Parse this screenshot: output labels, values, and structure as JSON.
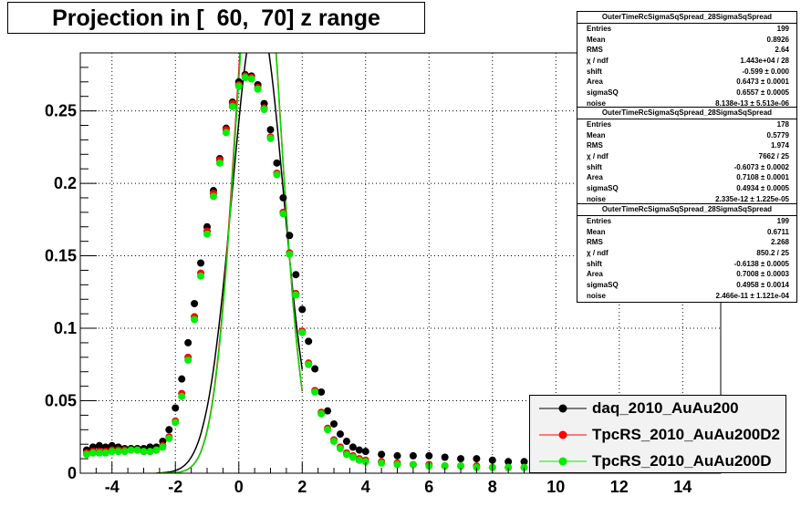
{
  "title": "Projection in [  60,  70] z range",
  "chart_data": {
    "type": "scatter",
    "xlim": [
      -5,
      15.2
    ],
    "ylim": [
      0,
      0.29
    ],
    "xticks": [
      -4,
      -2,
      0,
      2,
      4,
      6,
      8,
      10,
      12,
      14
    ],
    "yticks": [
      0,
      0.05,
      0.1,
      0.15,
      0.2,
      0.25
    ],
    "ytick_labels": [
      "0",
      "0.05",
      "0.1",
      "0.15",
      "0.2",
      "0.25"
    ],
    "grid": true,
    "legend_position": "bottom-right",
    "series": [
      {
        "name": "daq_2010_AuAu200",
        "color": "#000000",
        "marker": "circle",
        "x": [
          -4.8,
          -4.6,
          -4.4,
          -4.2,
          -4.0,
          -3.8,
          -3.6,
          -3.4,
          -3.2,
          -3.0,
          -2.8,
          -2.6,
          -2.4,
          -2.2,
          -2.0,
          -1.8,
          -1.6,
          -1.4,
          -1.2,
          -1.0,
          -0.8,
          -0.6,
          -0.4,
          -0.2,
          0.0,
          0.2,
          0.4,
          0.6,
          0.8,
          1.0,
          1.2,
          1.4,
          1.6,
          1.8,
          2.0,
          2.2,
          2.4,
          2.6,
          2.8,
          3.0,
          3.2,
          3.4,
          3.6,
          3.8,
          4.0,
          4.5,
          5.0,
          5.5,
          6.0,
          6.5,
          7.0,
          7.5,
          8.0,
          8.5,
          9.0
        ],
        "y": [
          0.016,
          0.018,
          0.019,
          0.018,
          0.019,
          0.018,
          0.017,
          0.017,
          0.017,
          0.017,
          0.018,
          0.018,
          0.022,
          0.03,
          0.045,
          0.065,
          0.09,
          0.117,
          0.145,
          0.17,
          0.195,
          0.217,
          0.238,
          0.256,
          0.27,
          0.275,
          0.274,
          0.268,
          0.255,
          0.237,
          0.214,
          0.19,
          0.164,
          0.137,
          0.113,
          0.091,
          0.072,
          0.056,
          0.043,
          0.034,
          0.027,
          0.022,
          0.018,
          0.016,
          0.015,
          0.013,
          0.012,
          0.012,
          0.012,
          0.011,
          0.01,
          0.01,
          0.009,
          0.008,
          0.008
        ]
      },
      {
        "name": "TpcRS_2010_AuAu200D2",
        "color": "#ff0000",
        "marker": "circle",
        "x": [
          -4.8,
          -4.6,
          -4.4,
          -4.2,
          -4.0,
          -3.8,
          -3.6,
          -3.4,
          -3.2,
          -3.0,
          -2.8,
          -2.6,
          -2.4,
          -2.2,
          -2.0,
          -1.8,
          -1.6,
          -1.4,
          -1.2,
          -1.0,
          -0.8,
          -0.6,
          -0.4,
          -0.2,
          0.0,
          0.2,
          0.4,
          0.6,
          0.8,
          1.0,
          1.2,
          1.4,
          1.6,
          1.8,
          2.0,
          2.2,
          2.4,
          2.6,
          2.8,
          3.0,
          3.2,
          3.4,
          3.6,
          3.8,
          4.0,
          4.5,
          5.0,
          5.5,
          6.0,
          6.5,
          7.0,
          7.5,
          8.0,
          8.5,
          9.0
        ],
        "y": [
          0.014,
          0.015,
          0.015,
          0.015,
          0.016,
          0.016,
          0.016,
          0.016,
          0.016,
          0.015,
          0.015,
          0.016,
          0.019,
          0.025,
          0.036,
          0.055,
          0.08,
          0.108,
          0.138,
          0.167,
          0.193,
          0.216,
          0.237,
          0.255,
          0.268,
          0.274,
          0.273,
          0.266,
          0.252,
          0.232,
          0.207,
          0.18,
          0.152,
          0.124,
          0.098,
          0.076,
          0.057,
          0.042,
          0.031,
          0.023,
          0.018,
          0.014,
          0.012,
          0.01,
          0.009,
          0.008,
          0.007,
          0.006,
          0.006,
          0.005,
          0.005,
          0.005,
          0.004,
          0.004,
          0.004
        ]
      },
      {
        "name": "TpcRS_2010_AuAu200D",
        "color": "#00ee00",
        "marker": "circle",
        "x": [
          -4.8,
          -4.6,
          -4.4,
          -4.2,
          -4.0,
          -3.8,
          -3.6,
          -3.4,
          -3.2,
          -3.0,
          -2.8,
          -2.6,
          -2.4,
          -2.2,
          -2.0,
          -1.8,
          -1.6,
          -1.4,
          -1.2,
          -1.0,
          -0.8,
          -0.6,
          -0.4,
          -0.2,
          0.0,
          0.2,
          0.4,
          0.6,
          0.8,
          1.0,
          1.2,
          1.4,
          1.6,
          1.8,
          2.0,
          2.2,
          2.4,
          2.6,
          2.8,
          3.0,
          3.2,
          3.4,
          3.6,
          3.8,
          4.0,
          4.5,
          5.0,
          5.5,
          6.0,
          6.5,
          7.0,
          7.5,
          8.0,
          8.5,
          9.0
        ],
        "y": [
          0.013,
          0.014,
          0.014,
          0.014,
          0.015,
          0.015,
          0.015,
          0.016,
          0.016,
          0.015,
          0.015,
          0.016,
          0.018,
          0.024,
          0.035,
          0.053,
          0.078,
          0.106,
          0.136,
          0.165,
          0.191,
          0.214,
          0.235,
          0.253,
          0.267,
          0.273,
          0.272,
          0.265,
          0.251,
          0.231,
          0.206,
          0.179,
          0.151,
          0.123,
          0.097,
          0.075,
          0.056,
          0.041,
          0.03,
          0.022,
          0.017,
          0.013,
          0.011,
          0.009,
          0.008,
          0.007,
          0.006,
          0.006,
          0.005,
          0.005,
          0.005,
          0.004,
          0.004,
          0.004,
          0.004
        ]
      }
    ],
    "fit_curves": [
      {
        "color": "#000000",
        "area": 0.6473,
        "shift": -0.599,
        "sigmaSQ": 0.6557,
        "x_from": -2.6,
        "x_to": 2.0
      },
      {
        "color": "#ff0000",
        "area": 0.7108,
        "shift": -0.6073,
        "sigmaSQ": 0.4934,
        "x_from": -2.6,
        "x_to": 2.0
      },
      {
        "color": "#00dd00",
        "area": 0.7008,
        "shift": -0.6138,
        "sigmaSQ": 0.4958,
        "x_from": -2.6,
        "x_to": 2.0
      }
    ]
  },
  "stats_boxes": [
    {
      "title": "OuterTimeRcSigmaSqSpread_28SigmaSqSpread",
      "rows": [
        {
          "label": "Entries",
          "value": "199"
        },
        {
          "label": "Mean",
          "value": "0.8926"
        },
        {
          "label": "RMS",
          "value": "2.64"
        },
        {
          "label": "χ  / ndf",
          "value": "1.443e+04 / 28"
        },
        {
          "label": "shift",
          "value": "-0.599 ± 0.000"
        },
        {
          "label": "Area",
          "value": "0.6473 ± 0.0001"
        },
        {
          "label": "sigmaSQ",
          "value": "0.6557 ± 0.0005"
        },
        {
          "label": "noise",
          "value": "8.138e-13 ± 5.513e-06"
        }
      ]
    },
    {
      "title": "OuterTimeRcSigmaSqSpread_28SigmaSqSpread",
      "rows": [
        {
          "label": "Entries",
          "value": "178"
        },
        {
          "label": "Mean",
          "value": "0.5779"
        },
        {
          "label": "RMS",
          "value": "1.974"
        },
        {
          "label": "χ  / ndf",
          "value": "7662 / 25"
        },
        {
          "label": "shift",
          "value": "-0.6073 ± 0.0002"
        },
        {
          "label": "Area",
          "value": "0.7108 ± 0.0001"
        },
        {
          "label": "sigmaSQ",
          "value": "0.4934 ± 0.0005"
        },
        {
          "label": "noise",
          "value": "2.335e-12 ± 1.225e-05"
        }
      ]
    },
    {
      "title": "OuterTimeRcSigmaSqSpread_28SigmaSqSpread",
      "rows": [
        {
          "label": "Entries",
          "value": "199"
        },
        {
          "label": "Mean",
          "value": "0.6711"
        },
        {
          "label": "RMS",
          "value": "2.268"
        },
        {
          "label": "χ  / ndf",
          "value": "850.2 / 25"
        },
        {
          "label": "shift",
          "value": "-0.6138 ± 0.0005"
        },
        {
          "label": "Area",
          "value": "0.7008 ± 0.0003"
        },
        {
          "label": "sigmaSQ",
          "value": "0.4958 ± 0.0014"
        },
        {
          "label": "noise",
          "value": "2.466e-11 ± 1.121e-04"
        }
      ]
    }
  ]
}
